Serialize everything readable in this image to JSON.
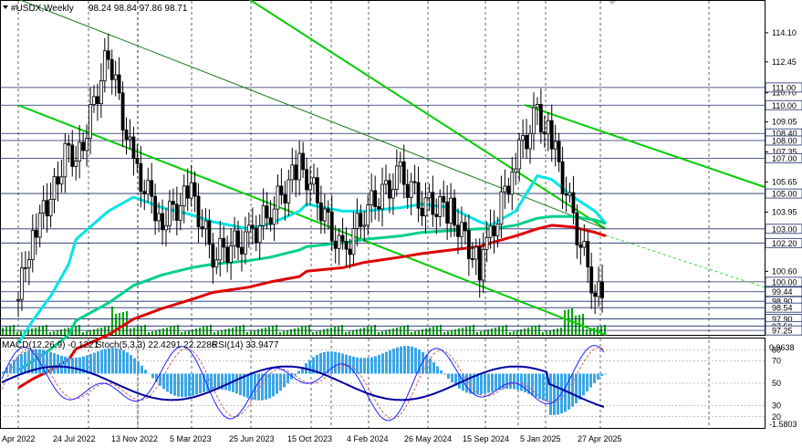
{
  "header": {
    "symbol": "#USDX,Weekly",
    "ohlc": "98.24 98.84 97.86 98.71"
  },
  "indicators_header": {
    "macd": "MACD(12,26,9) -0.1221",
    "stoch": "Stoch(5,3,3) 22.4291 22.2286",
    "rsi": "RSI(14) 33.9477"
  },
  "chart_data": [
    {
      "type": "line",
      "role": "price-weekly-candles",
      "x_ticks": [
        "Apr 2022",
        "24 Jul 2022",
        "13 Nov 2022",
        "5 Mar 2023",
        "25 Jun 2023",
        "15 Oct 2023",
        "4 Feb 2024",
        "26 May 2024",
        "15 Sep 2024",
        "5 Jan 2025",
        "27 Apr 2025"
      ],
      "y_ticks": [
        114.1,
        112.45,
        110.7,
        109.05,
        107.35,
        105.65,
        103.95,
        100.6
      ],
      "level_labels": [
        111.0,
        110.0,
        108.4,
        108.0,
        107.0,
        105.0,
        103.0,
        102.2,
        100.0,
        99.44,
        98.9,
        98.54,
        97.9,
        97.5,
        97.25
      ],
      "ylim": [
        97.0,
        115.9
      ],
      "x": [
        "2022-04-03",
        "2022-05-01",
        "2022-06-05",
        "2022-07-10",
        "2022-07-24",
        "2022-09-25",
        "2022-11-13",
        "2023-01-08",
        "2023-03-05",
        "2023-04-16",
        "2023-06-25",
        "2023-08-06",
        "2023-10-01",
        "2023-10-15",
        "2023-12-24",
        "2024-02-04",
        "2024-04-14",
        "2024-05-26",
        "2024-07-21",
        "2024-09-15",
        "2024-10-06",
        "2024-11-24",
        "2025-01-05",
        "2025-02-02",
        "2025-03-16",
        "2025-04-27",
        "2025-05-18"
      ],
      "values": [
        99.0,
        103.0,
        104.5,
        108.0,
        106.5,
        113.0,
        106.5,
        103.5,
        105.0,
        101.5,
        102.5,
        104.0,
        106.5,
        106.0,
        101.5,
        104.0,
        106.0,
        104.5,
        104.0,
        100.8,
        102.5,
        107.0,
        109.5,
        108.0,
        103.5,
        99.5,
        98.71
      ],
      "moving_averages": [
        {
          "color": "#00e5e5",
          "values": [
            96.5,
            97.8,
            99.2,
            101.0,
            102.4,
            104.0,
            104.8,
            104.2,
            103.8,
            103.4,
            103.0,
            103.3,
            104.0,
            104.4,
            104.0,
            104.0,
            104.2,
            104.4,
            104.2,
            103.4,
            103.2,
            104.0,
            106.0,
            105.8,
            104.8,
            104.0,
            103.3
          ]
        },
        {
          "color": "#00d08a",
          "values": [
            95.0,
            95.5,
            96.2,
            97.0,
            97.8,
            98.8,
            99.8,
            100.4,
            100.8,
            101.0,
            101.2,
            101.4,
            101.8,
            102.0,
            102.2,
            102.4,
            102.6,
            102.8,
            102.9,
            103.0,
            103.0,
            103.2,
            103.6,
            103.7,
            103.7,
            103.5,
            103.3
          ]
        },
        {
          "color": "#e00000",
          "values": [
            94.0,
            94.5,
            95.0,
            95.6,
            96.2,
            97.0,
            97.9,
            98.5,
            99.0,
            99.4,
            99.7,
            100.0,
            100.3,
            100.6,
            100.8,
            101.1,
            101.4,
            101.6,
            101.8,
            102.0,
            102.2,
            102.6,
            103.0,
            103.2,
            103.1,
            102.8,
            102.6
          ]
        }
      ],
      "trendlines": [
        {
          "color": "#00cc00",
          "x": [
            "2022-04-03",
            "2025-05-18"
          ],
          "values": [
            110.0,
            97.0
          ]
        },
        {
          "color": "#00cc00",
          "x": [
            "2023-06-25",
            "2025-05-18"
          ],
          "values": [
            116.0,
            103.0
          ]
        },
        {
          "color": "#1a7a1a",
          "x": [
            "2022-04-03",
            "2025-05-18"
          ],
          "values": [
            116.0,
            103.0
          ]
        }
      ]
    },
    {
      "type": "bar",
      "role": "macd-histogram",
      "y_ticks": [
        0.9638,
        -1.5803
      ],
      "ylim": [
        -1.7,
        1.1
      ]
    },
    {
      "type": "line",
      "role": "stochastic-rsi",
      "y_ticks": [
        80,
        70,
        50,
        30,
        20
      ],
      "ylim": [
        10,
        90
      ]
    }
  ],
  "colors": {
    "accent_green": "#00cc00",
    "ma_fast": "#00e5e5",
    "ma_mid": "#00d08a",
    "ma_slow": "#e00000",
    "macd": "#3aa7e8",
    "rsi": "#0000a0",
    "stoch_main": "#2020ff",
    "stoch_signal": "#d06060"
  }
}
